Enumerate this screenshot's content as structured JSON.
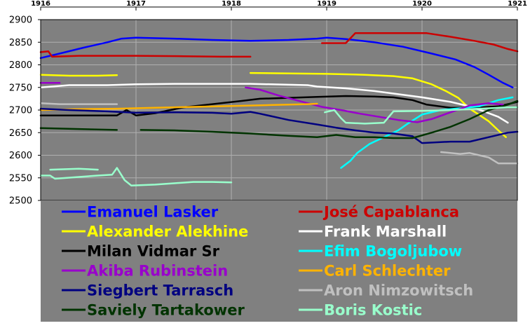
{
  "chart_data": {
    "type": "line",
    "title": "",
    "xlabel": "",
    "ylabel": "",
    "xlim": [
      1916,
      1921
    ],
    "ylim": [
      2500,
      2900
    ],
    "x_ticks": [
      1916,
      1917,
      1918,
      1919,
      1920,
      1921
    ],
    "x_tick_labels": [
      "1916",
      "1917",
      "1918",
      "1919",
      "1920",
      "1921"
    ],
    "y_ticks": [
      2500,
      2550,
      2600,
      2650,
      2700,
      2750,
      2800,
      2850,
      2900
    ],
    "y_tick_labels": [
      "2500",
      "2550",
      "2600",
      "2650",
      "2700",
      "2750",
      "2800",
      "2850",
      "2900"
    ],
    "x_axis_position": "top",
    "grid": true,
    "plot_background": "#808080",
    "grid_color": "#b0b0b0",
    "legend": {
      "position": "bottom",
      "columns": 2
    },
    "series": [
      {
        "name": "Emanuel Lasker",
        "color": "#0000ff",
        "data": [
          [
            1916.0,
            2815
          ],
          [
            1916.2,
            2825
          ],
          [
            1916.45,
            2838
          ],
          [
            1916.7,
            2850
          ],
          [
            1916.85,
            2858
          ],
          [
            1917.0,
            2860
          ],
          [
            1917.4,
            2858
          ],
          [
            1917.8,
            2855
          ],
          [
            1918.2,
            2853
          ],
          [
            1918.6,
            2855
          ],
          [
            1918.9,
            2858
          ],
          [
            1919.0,
            2860
          ],
          [
            1919.2,
            2857
          ],
          [
            1919.5,
            2850
          ],
          [
            1919.8,
            2840
          ],
          [
            1920.1,
            2825
          ],
          [
            1920.35,
            2812
          ],
          [
            1920.55,
            2795
          ],
          [
            1920.7,
            2778
          ],
          [
            1920.85,
            2760
          ],
          [
            1920.95,
            2750
          ]
        ]
      },
      {
        "name": "José Capablanca",
        "color": "#cc0000",
        "data": [
          [
            1916.0,
            2828
          ],
          [
            1916.08,
            2830
          ],
          [
            1916.12,
            2818
          ],
          [
            1916.4,
            2820
          ],
          [
            1916.7,
            2820
          ],
          [
            1917.0,
            2820
          ],
          [
            1917.5,
            2819
          ],
          [
            1917.9,
            2818
          ],
          [
            1918.2,
            2818
          ],
          null,
          [
            1918.95,
            2848
          ],
          [
            1919.2,
            2848
          ],
          [
            1919.3,
            2870
          ],
          [
            1919.6,
            2870
          ],
          [
            1919.9,
            2870
          ],
          [
            1920.05,
            2870
          ],
          [
            1920.3,
            2862
          ],
          [
            1920.55,
            2853
          ],
          [
            1920.75,
            2845
          ],
          [
            1920.9,
            2835
          ],
          [
            1921.0,
            2830
          ]
        ]
      },
      {
        "name": "Alexander Alekhine",
        "color": "#ffff00",
        "data": [
          [
            1916.0,
            2778
          ],
          [
            1916.3,
            2776
          ],
          [
            1916.6,
            2776
          ],
          [
            1916.8,
            2777
          ],
          null,
          [
            1918.2,
            2782
          ],
          [
            1918.6,
            2781
          ],
          [
            1919.0,
            2780
          ],
          [
            1919.4,
            2778
          ],
          [
            1919.7,
            2775
          ],
          [
            1919.9,
            2770
          ],
          [
            1920.1,
            2757
          ],
          [
            1920.25,
            2742
          ],
          [
            1920.38,
            2727
          ],
          [
            1920.5,
            2703
          ],
          [
            1920.58,
            2692
          ],
          [
            1920.7,
            2675
          ],
          [
            1920.8,
            2655
          ],
          [
            1920.88,
            2640
          ]
        ]
      },
      {
        "name": "Frank Marshall",
        "color": "#ffffff",
        "data": [
          [
            1916.0,
            2750
          ],
          [
            1916.3,
            2755
          ],
          [
            1916.7,
            2755
          ],
          [
            1917.0,
            2757
          ],
          [
            1917.4,
            2758
          ],
          [
            1917.8,
            2758
          ],
          [
            1918.2,
            2758
          ],
          [
            1918.6,
            2756
          ],
          [
            1918.8,
            2755
          ],
          [
            1918.9,
            2752
          ],
          [
            1919.2,
            2748
          ],
          [
            1919.5,
            2742
          ],
          [
            1919.75,
            2735
          ],
          [
            1920.0,
            2728
          ],
          [
            1920.3,
            2718
          ],
          [
            1920.5,
            2708
          ],
          [
            1920.65,
            2697
          ],
          [
            1920.8,
            2685
          ],
          [
            1920.9,
            2672
          ]
        ]
      },
      {
        "name": "Milan Vidmar Sr",
        "color": "#000000",
        "data": [
          [
            1916.0,
            2688
          ],
          [
            1916.4,
            2688
          ],
          [
            1916.8,
            2688
          ],
          [
            1916.9,
            2700
          ],
          [
            1917.0,
            2688
          ],
          [
            1917.2,
            2693
          ],
          [
            1917.5,
            2706
          ],
          [
            1917.8,
            2713
          ],
          [
            1918.1,
            2720
          ],
          [
            1918.3,
            2725
          ],
          [
            1918.6,
            2727
          ],
          [
            1918.9,
            2729
          ],
          [
            1919.2,
            2731
          ],
          [
            1919.5,
            2730
          ],
          [
            1919.7,
            2728
          ],
          [
            1919.9,
            2722
          ],
          [
            1920.05,
            2712
          ],
          [
            1920.3,
            2705
          ],
          [
            1920.55,
            2705
          ],
          [
            1920.8,
            2708
          ],
          [
            1921.0,
            2718
          ]
        ]
      },
      {
        "name": "Efim Bogoljubow",
        "color": "#00ffff",
        "data": [
          [
            1919.15,
            2572
          ],
          [
            1919.25,
            2588
          ],
          [
            1919.32,
            2605
          ],
          [
            1919.45,
            2625
          ],
          [
            1919.6,
            2640
          ],
          [
            1919.75,
            2655
          ],
          [
            1919.85,
            2670
          ],
          [
            1920.0,
            2690
          ],
          [
            1920.2,
            2700
          ],
          [
            1920.45,
            2705
          ],
          [
            1920.6,
            2708
          ],
          [
            1920.8,
            2722
          ],
          [
            1920.95,
            2728
          ]
        ]
      },
      {
        "name": "Akiba Rubinstein",
        "color": "#9900cc",
        "data": [
          [
            1916.0,
            2760
          ],
          [
            1916.2,
            2760
          ],
          null,
          [
            1918.15,
            2750
          ],
          [
            1918.3,
            2745
          ],
          [
            1918.5,
            2732
          ],
          [
            1918.75,
            2718
          ],
          [
            1918.95,
            2707
          ],
          [
            1919.15,
            2700
          ],
          [
            1919.35,
            2692
          ],
          [
            1919.55,
            2685
          ],
          [
            1919.75,
            2678
          ],
          [
            1919.95,
            2673
          ],
          [
            1920.1,
            2680
          ],
          [
            1920.3,
            2695
          ],
          [
            1920.5,
            2710
          ],
          [
            1920.7,
            2715
          ],
          [
            1920.85,
            2712
          ]
        ]
      },
      {
        "name": "Carl Schlechter",
        "color": "#ffb300",
        "data": [
          [
            1916.0,
            2700
          ],
          [
            1916.4,
            2702
          ],
          [
            1916.8,
            2703
          ],
          [
            1917.2,
            2705
          ],
          [
            1917.6,
            2707
          ],
          [
            1918.0,
            2709
          ],
          [
            1918.4,
            2711
          ],
          [
            1918.8,
            2713
          ],
          [
            1918.9,
            2714
          ]
        ]
      },
      {
        "name": "Siegbert Tarrasch",
        "color": "#000080",
        "data": [
          [
            1916.0,
            2703
          ],
          [
            1916.3,
            2700
          ],
          [
            1916.7,
            2697
          ],
          [
            1917.0,
            2694
          ],
          [
            1917.4,
            2695
          ],
          [
            1917.8,
            2694
          ],
          [
            1918.0,
            2692
          ],
          [
            1918.2,
            2696
          ],
          [
            1918.3,
            2692
          ],
          [
            1918.6,
            2678
          ],
          [
            1918.9,
            2668
          ],
          [
            1919.1,
            2661
          ],
          [
            1919.3,
            2655
          ],
          [
            1919.5,
            2650
          ],
          [
            1919.7,
            2648
          ],
          [
            1919.9,
            2642
          ],
          [
            1920.0,
            2627
          ],
          [
            1920.3,
            2630
          ],
          [
            1920.5,
            2630
          ],
          [
            1920.7,
            2640
          ],
          [
            1920.9,
            2650
          ],
          [
            1921.0,
            2652
          ]
        ]
      },
      {
        "name": "Aron Nimzowitsch",
        "color": "#c0c0c0",
        "data": [
          [
            1916.0,
            2715
          ],
          [
            1916.2,
            2713
          ],
          [
            1916.5,
            2713
          ],
          [
            1916.8,
            2713
          ],
          null,
          [
            1920.2,
            2607
          ],
          [
            1920.4,
            2603
          ],
          [
            1920.5,
            2605
          ],
          [
            1920.6,
            2600
          ],
          [
            1920.7,
            2595
          ],
          [
            1920.8,
            2582
          ],
          [
            1921.0,
            2582
          ]
        ]
      },
      {
        "name": "Saviely Tartakower",
        "color": "#003300",
        "data": [
          [
            1916.0,
            2660
          ],
          [
            1916.4,
            2658
          ],
          [
            1916.8,
            2656
          ],
          null,
          [
            1917.05,
            2656
          ],
          [
            1917.4,
            2655
          ],
          [
            1917.8,
            2652
          ],
          [
            1918.2,
            2648
          ],
          [
            1918.6,
            2643
          ],
          [
            1918.9,
            2640
          ],
          [
            1919.1,
            2645
          ],
          [
            1919.3,
            2640
          ],
          [
            1919.5,
            2640
          ],
          [
            1919.7,
            2638
          ],
          [
            1919.9,
            2638
          ],
          [
            1920.1,
            2650
          ],
          [
            1920.3,
            2663
          ],
          [
            1920.5,
            2680
          ],
          [
            1920.7,
            2700
          ],
          [
            1920.9,
            2712
          ],
          [
            1921.0,
            2720
          ]
        ]
      },
      {
        "name": "Boris Kostic",
        "color": "#99ffcc",
        "data": [
          [
            1916.0,
            2555
          ],
          [
            1916.1,
            2555
          ],
          [
            1916.15,
            2548
          ],
          [
            1916.4,
            2552
          ],
          [
            1916.6,
            2555
          ],
          [
            1916.75,
            2557
          ],
          [
            1916.8,
            2572
          ],
          [
            1916.88,
            2545
          ],
          [
            1916.95,
            2533
          ],
          [
            1917.2,
            2535
          ],
          [
            1917.4,
            2538
          ],
          [
            1917.6,
            2541
          ],
          [
            1917.8,
            2541
          ],
          [
            1918.0,
            2540
          ],
          null,
          [
            1916.1,
            2568
          ],
          [
            1916.4,
            2570
          ],
          [
            1916.6,
            2568
          ],
          null,
          [
            1918.98,
            2695
          ],
          [
            1919.08,
            2700
          ],
          [
            1919.15,
            2682
          ],
          [
            1919.2,
            2672
          ],
          [
            1919.4,
            2670
          ],
          [
            1919.6,
            2672
          ],
          [
            1919.7,
            2697
          ],
          [
            1920.0,
            2698
          ],
          [
            1920.3,
            2700
          ],
          [
            1920.6,
            2703
          ],
          [
            1920.9,
            2706
          ],
          [
            1921.0,
            2706
          ]
        ]
      }
    ]
  }
}
